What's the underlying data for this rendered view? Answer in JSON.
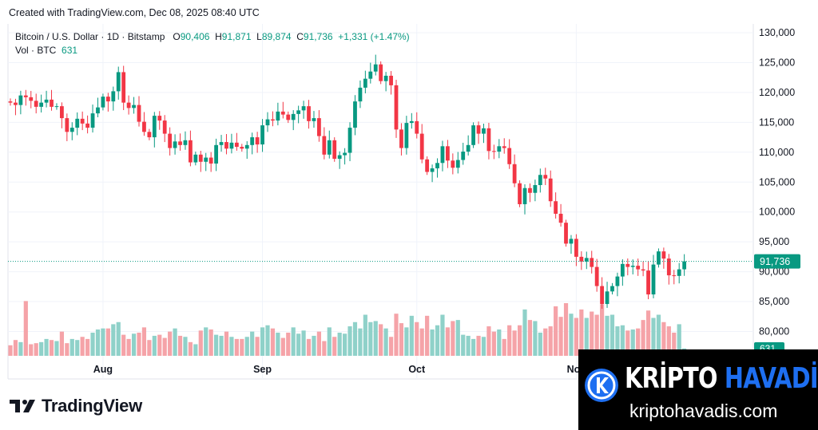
{
  "header": {
    "created": "Created with TradingView.com, Dec 08, 2025 08:40 UTC"
  },
  "legend": {
    "symbol": "Bitcoin / U.S. Dollar · 1D · Bitstamp",
    "o_label": "O",
    "o_value": "90,406",
    "h_label": "H",
    "h_value": "91,871",
    "l_label": "L",
    "l_value": "89,874",
    "c_label": "C",
    "c_value": "91,736",
    "change": "+1,331 (+1.47%)",
    "vol_label": "Vol · BTC",
    "vol_value": "631"
  },
  "brand": {
    "tradingview": "TradingView"
  },
  "watermark": {
    "title_white": "KRİPTO",
    "title_blue": "HAVADİS",
    "url": "kriptohavadis.com"
  },
  "colors": {
    "up": "#089981",
    "down": "#f23645",
    "vol_up": "#8fd1c9",
    "vol_down": "#f5a3a8",
    "grid": "#f0f3fa",
    "last_price": "#089981"
  },
  "chart_data": {
    "type": "candlestick",
    "symbol": "BTC/USD",
    "timeframe": "1D",
    "y_axis": {
      "ylim": [
        76800,
        131000
      ],
      "ticks": [
        130000,
        125000,
        120000,
        115000,
        110000,
        105000,
        100000,
        95000,
        90000,
        85000,
        80000
      ]
    },
    "y_tick_labels": [
      "130,000",
      "125,000",
      "120,000",
      "115,000",
      "110,000",
      "105,000",
      "100,000",
      "95,000",
      "90,000",
      "85,000",
      "80,000"
    ],
    "x_tick_labels": [
      {
        "label": "Aug",
        "date": "2025-08-01"
      },
      {
        "label": "Sep",
        "date": "2025-09-01"
      },
      {
        "label": "Oct",
        "date": "2025-10-01"
      },
      {
        "label": "Nov",
        "date": "2025-11-01"
      }
    ],
    "last_price": 91736,
    "last_price_label": "91,736",
    "last_volume_label": "631",
    "first_date": "2025-07-14",
    "closes": [
      118300,
      117900,
      119500,
      119200,
      118600,
      117600,
      118300,
      118800,
      117600,
      117700,
      115700,
      113400,
      114100,
      115600,
      114800,
      114100,
      116500,
      117500,
      119300,
      118500,
      120200,
      123400,
      118300,
      117400,
      117900,
      115100,
      113400,
      112500,
      116100,
      115300,
      113100,
      110700,
      111800,
      111200,
      112000,
      108300,
      109600,
      108400,
      109100,
      108100,
      111200,
      111700,
      110600,
      111600,
      110900,
      110600,
      111200,
      112500,
      111300,
      114500,
      115500,
      115300,
      116800,
      116300,
      115400,
      116400,
      117000,
      117700,
      115200,
      115700,
      112700,
      109600,
      112000,
      108900,
      109500,
      109900,
      114100,
      118500,
      120800,
      122300,
      123500,
      124700,
      121900,
      122800,
      121200,
      113800,
      110700,
      114900,
      115200,
      113100,
      108800,
      106700,
      107300,
      108200,
      111000,
      108600,
      107400,
      108700,
      110100,
      111200,
      114500,
      113100,
      114000,
      110200,
      110100,
      111000,
      110700,
      108000,
      104800,
      101300,
      104000,
      103200,
      104500,
      106200,
      105600,
      101800,
      99700,
      98200,
      94700,
      95500,
      92500,
      91700,
      92300,
      90800,
      87600,
      84600,
      86700,
      87600,
      89200,
      91300,
      90800,
      91000,
      90400,
      90200,
      86200,
      91200,
      93400,
      92200,
      89400,
      89300,
      90400,
      91736
    ],
    "volumes": [
      1.0,
      1.5,
      1.3,
      5.2,
      1.1,
      1.2,
      1.3,
      1.6,
      1.5,
      1.4,
      2.3,
      1.2,
      1.6,
      1.5,
      1.8,
      1.6,
      2.2,
      2.5,
      2.6,
      2.6,
      3.0,
      3.2,
      2.0,
      1.6,
      2.1,
      2.2,
      2.7,
      1.5,
      1.9,
      2.0,
      1.7,
      2.3,
      2.6,
      1.9,
      1.8,
      1.3,
      1.1,
      2.4,
      2.7,
      2.5,
      2.0,
      1.9,
      2.3,
      1.8,
      1.6,
      1.6,
      1.8,
      2.3,
      1.8,
      2.7,
      2.9,
      2.6,
      2.2,
      1.7,
      2.2,
      2.7,
      2.1,
      2.4,
      1.6,
      1.9,
      2.3,
      1.4,
      2.7,
      1.8,
      2.2,
      2.1,
      2.8,
      3.2,
      2.6,
      3.9,
      3.2,
      3.3,
      3.0,
      2.6,
      1.8,
      4.0,
      3.1,
      2.7,
      3.8,
      3.2,
      2.6,
      3.8,
      2.5,
      2.9,
      3.9,
      2.7,
      3.3,
      3.4,
      2.0,
      1.9,
      1.6,
      1.9,
      1.8,
      2.8,
      2.3,
      2.5,
      1.6,
      2.9,
      2.4,
      2.9,
      4.4,
      3.4,
      3.3,
      2.2,
      2.6,
      2.8,
      4.7,
      3.7,
      5.0,
      4.0,
      3.6,
      4.4,
      3.6,
      4.2,
      3.9,
      4.9,
      3.8,
      3.9,
      2.8,
      2.9,
      2.4,
      2.5,
      2.6,
      3.4,
      4.3,
      3.6,
      3.9,
      3.2,
      2.8,
      2.2,
      3.0,
      0.7
    ],
    "x_scale": {
      "ticks": "date"
    },
    "volume_unit": "BTC"
  }
}
